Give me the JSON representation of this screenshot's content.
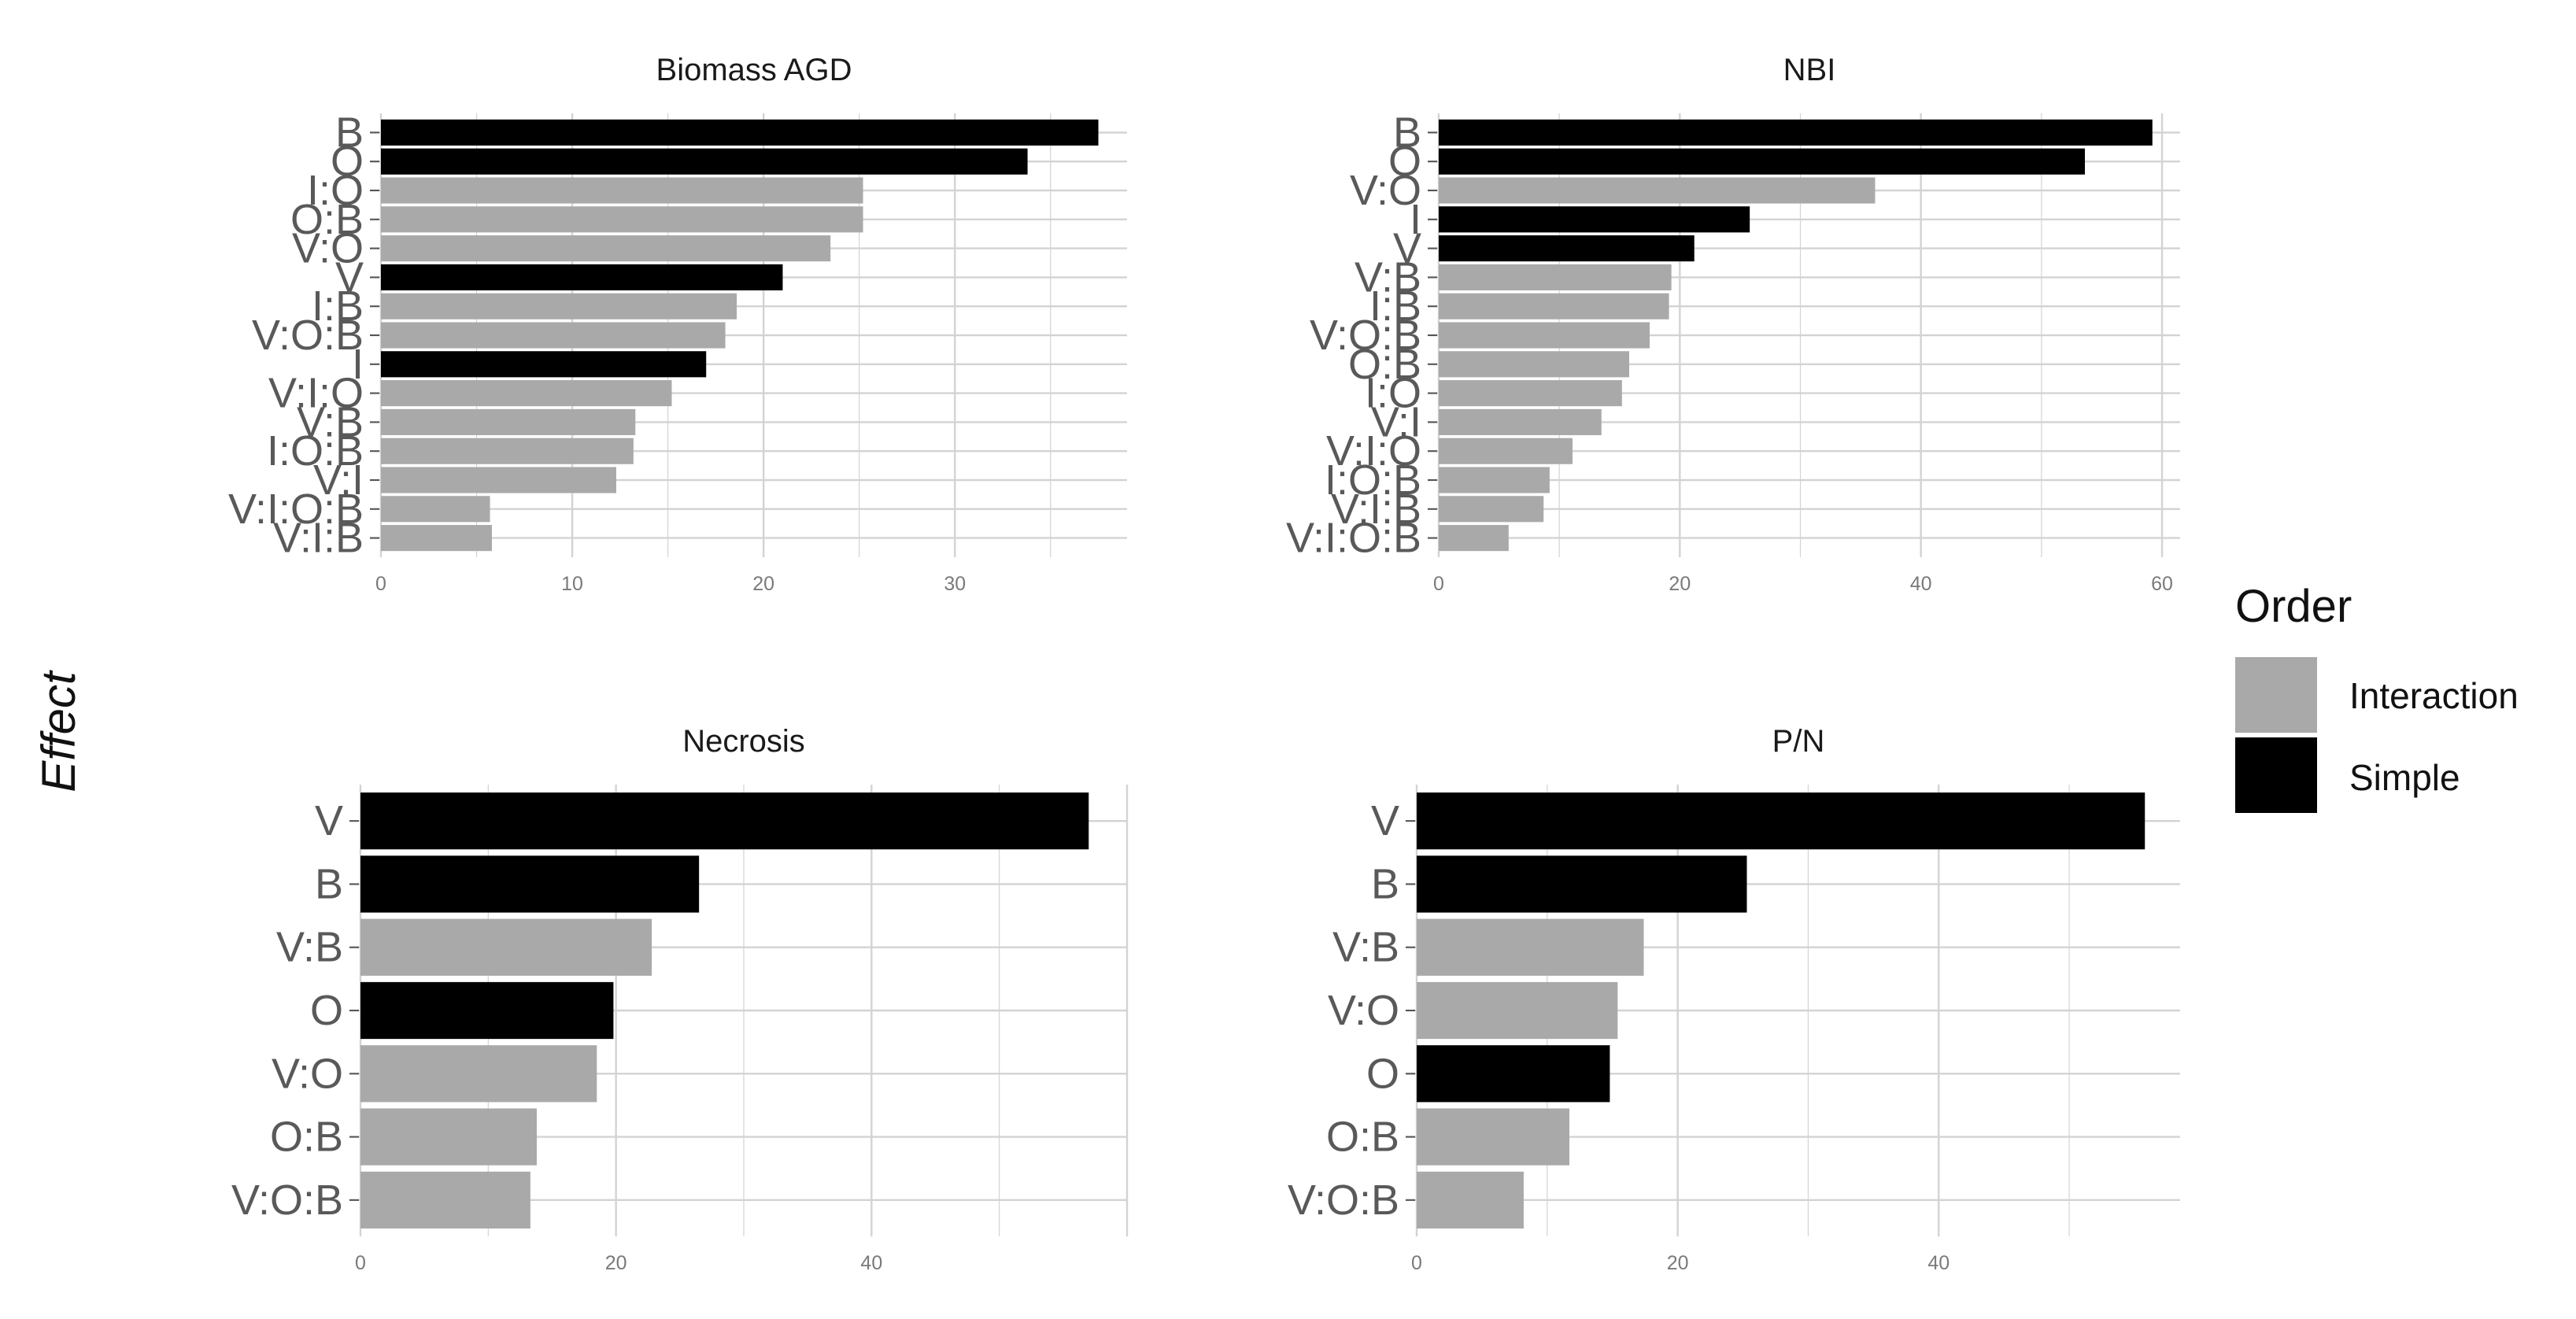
{
  "chart_data": [
    {
      "type": "bar",
      "orientation": "horizontal",
      "title": "Biomass AGD",
      "categories": [
        "B",
        "O",
        "I:O",
        "O:B",
        "V:O",
        "V",
        "I:B",
        "V:O:B",
        "I",
        "V:I:O",
        "V:B",
        "I:O:B",
        "V:I",
        "V:I:O:B",
        "V:I:B"
      ],
      "values": [
        37.5,
        33.8,
        25.2,
        25.2,
        23.5,
        21.0,
        18.6,
        18.0,
        17.0,
        15.2,
        13.3,
        13.2,
        12.3,
        5.7,
        5.8
      ],
      "order": [
        "Simple",
        "Simple",
        "Interaction",
        "Interaction",
        "Interaction",
        "Simple",
        "Interaction",
        "Interaction",
        "Simple",
        "Interaction",
        "Interaction",
        "Interaction",
        "Interaction",
        "Interaction",
        "Interaction"
      ],
      "xticks": [
        "0",
        "10",
        "20",
        "30"
      ],
      "xlim": [
        0,
        39
      ]
    },
    {
      "type": "bar",
      "orientation": "horizontal",
      "title": "NBI",
      "categories": [
        "B",
        "O",
        "V:O",
        "I",
        "V",
        "V:B",
        "I:B",
        "V:O:B",
        "O:B",
        "I:O",
        "V:I",
        "V:I:O",
        "I:O:B",
        "V:I:B",
        "V:I:O:B"
      ],
      "values": [
        59.2,
        53.6,
        36.2,
        25.8,
        21.2,
        19.3,
        19.1,
        17.5,
        15.8,
        15.2,
        13.5,
        11.1,
        9.2,
        8.7,
        5.8
      ],
      "order": [
        "Simple",
        "Simple",
        "Interaction",
        "Simple",
        "Simple",
        "Interaction",
        "Interaction",
        "Interaction",
        "Interaction",
        "Interaction",
        "Interaction",
        "Interaction",
        "Interaction",
        "Interaction",
        "Interaction"
      ],
      "xticks": [
        "0",
        "20",
        "40",
        "60"
      ],
      "xlim": [
        0,
        61.5
      ]
    },
    {
      "type": "bar",
      "orientation": "horizontal",
      "title": "Necrosis",
      "categories": [
        "V",
        "B",
        "V:B",
        "O",
        "V:O",
        "O:B",
        "V:O:B"
      ],
      "values": [
        57.0,
        26.5,
        22.8,
        19.8,
        18.5,
        13.8,
        13.3
      ],
      "order": [
        "Simple",
        "Simple",
        "Interaction",
        "Simple",
        "Interaction",
        "Interaction",
        "Interaction"
      ],
      "xticks": [
        "0",
        "20",
        "40"
      ],
      "xlim": [
        0,
        60
      ]
    },
    {
      "type": "bar",
      "orientation": "horizontal",
      "title": "P/N",
      "categories": [
        "V",
        "B",
        "V:B",
        "V:O",
        "O",
        "O:B",
        "V:O:B"
      ],
      "values": [
        55.8,
        25.3,
        17.4,
        15.4,
        14.8,
        11.7,
        8.2
      ],
      "order": [
        "Simple",
        "Simple",
        "Interaction",
        "Interaction",
        "Simple",
        "Interaction",
        "Interaction"
      ],
      "xticks": [
        "0",
        "20",
        "40"
      ],
      "xlim": [
        0,
        58.5
      ]
    }
  ],
  "y_axis_title": "Effect",
  "legend": {
    "title": "Order",
    "position": "right",
    "items": [
      {
        "label": "Interaction",
        "color": "#a9a9a9"
      },
      {
        "label": "Simple",
        "color": "#000000"
      }
    ]
  },
  "colors": {
    "Interaction": "#a9a9a9",
    "Simple": "#000000",
    "grid": "#d3d3d3"
  }
}
